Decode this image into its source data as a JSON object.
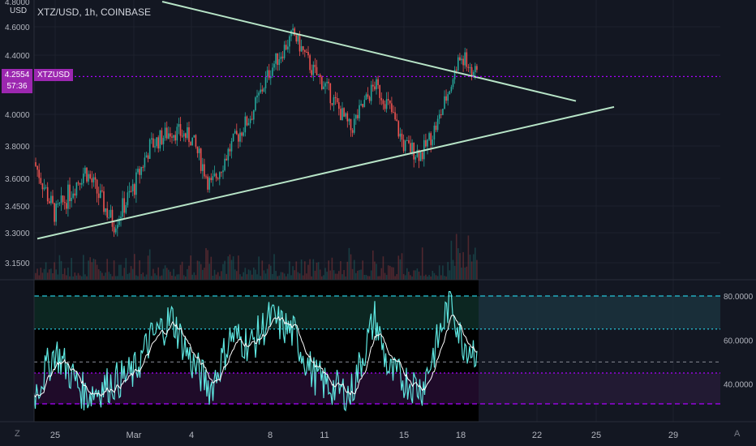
{
  "header": {
    "symbol_title": "XTZ/USD, 1h, COINBASE",
    "currency": "USD"
  },
  "price_marker": {
    "price": "4.2554",
    "countdown": "57:36",
    "ticker": "XTZUSD",
    "color": "#9c27b0"
  },
  "icons": {
    "left": "Z",
    "right": "A"
  },
  "colors": {
    "background": "#131722",
    "up": "#26a69a",
    "down": "#ef5350",
    "trendline": "#b7e4c7",
    "rsi_line": "#5ee6e0",
    "rsi_signal": "#ffffff",
    "rsi_upper_band": "#26c6da",
    "rsi_lower_band": "#aa00ff"
  },
  "chart_data": [
    {
      "type": "candlestick",
      "title": "XTZ/USD, 1h, COINBASE",
      "y_ticks": [
        "4.8000",
        "4.6000",
        "4.4000",
        "4.0000",
        "3.8000",
        "3.6000",
        "3.4500",
        "3.3000",
        "3.1500"
      ],
      "x_ticks": [
        "25",
        "Mar",
        "4",
        "8",
        "11",
        "15",
        "18",
        "22",
        "25",
        "29"
      ],
      "last_price": 4.2554,
      "key_points": [
        {
          "x": "24",
          "y": 3.7
        },
        {
          "x": "25",
          "y": 3.4
        },
        {
          "x": "26",
          "y": 3.65
        },
        {
          "x": "27",
          "y": 3.35
        },
        {
          "x": "Mar",
          "y": 3.55
        },
        {
          "x": "2",
          "y": 3.8
        },
        {
          "x": "3",
          "y": 3.9
        },
        {
          "x": "4",
          "y": 3.85
        },
        {
          "x": "5",
          "y": 3.55
        },
        {
          "x": "6",
          "y": 3.8
        },
        {
          "x": "7",
          "y": 4.0
        },
        {
          "x": "8",
          "y": 4.3
        },
        {
          "x": "9",
          "y": 4.55
        },
        {
          "x": "10",
          "y": 4.3
        },
        {
          "x": "11",
          "y": 4.2
        },
        {
          "x": "12",
          "y": 3.9
        },
        {
          "x": "13",
          "y": 4.2
        },
        {
          "x": "14",
          "y": 4.05
        },
        {
          "x": "15",
          "y": 3.8
        },
        {
          "x": "16",
          "y": 3.75
        },
        {
          "x": "17",
          "y": 3.95
        },
        {
          "x": "18",
          "y": 4.4
        },
        {
          "x": "18.5",
          "y": 4.2554
        }
      ],
      "trendlines": [
        {
          "name": "descending resistance",
          "start": {
            "x": "24",
            "y": 4.82
          },
          "end": {
            "x": "24",
            "y": 4.09
          }
        },
        {
          "name": "ascending support",
          "start": {
            "x": "24",
            "y": 3.27
          },
          "end": {
            "x": "26",
            "y": 4.05
          }
        }
      ]
    },
    {
      "type": "line",
      "y_ticks": [
        "80.0000",
        "60.0000",
        "40.0000"
      ],
      "ylim": [
        25,
        85
      ],
      "bands": {
        "upper_extreme": 80,
        "upper": 65,
        "middle": 50,
        "lower": 45,
        "lower_extreme": 31
      },
      "key_points": [
        {
          "x": "24",
          "y": 35
        },
        {
          "x": "25",
          "y": 55
        },
        {
          "x": "26",
          "y": 35
        },
        {
          "x": "Mar",
          "y": 45
        },
        {
          "x": "2",
          "y": 60
        },
        {
          "x": "3",
          "y": 70
        },
        {
          "x": "4",
          "y": 50
        },
        {
          "x": "5",
          "y": 38
        },
        {
          "x": "6",
          "y": 62
        },
        {
          "x": "7",
          "y": 58
        },
        {
          "x": "8",
          "y": 70
        },
        {
          "x": "9",
          "y": 63
        },
        {
          "x": "10",
          "y": 45
        },
        {
          "x": "11",
          "y": 40
        },
        {
          "x": "12",
          "y": 35
        },
        {
          "x": "13",
          "y": 70
        },
        {
          "x": "14",
          "y": 45
        },
        {
          "x": "15",
          "y": 42
        },
        {
          "x": "16",
          "y": 38
        },
        {
          "x": "17",
          "y": 60
        },
        {
          "x": "17.5",
          "y": 80
        },
        {
          "x": "18",
          "y": 60
        },
        {
          "x": "18.5",
          "y": 55
        }
      ]
    }
  ]
}
